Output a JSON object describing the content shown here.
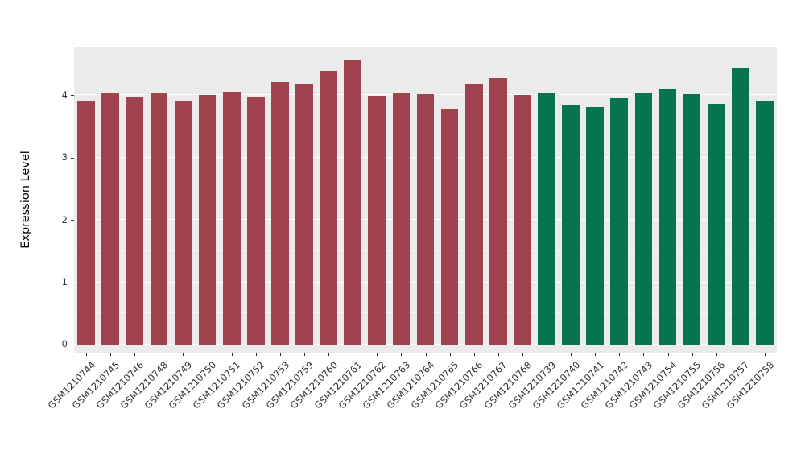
{
  "chart_data": {
    "type": "bar",
    "title": "",
    "xlabel": "",
    "ylabel": "Expression Level",
    "categories": [
      "GSM1210744",
      "GSM1210745",
      "GSM1210746",
      "GSM1210748",
      "GSM1210749",
      "GSM1210750",
      "GSM1210751",
      "GSM1210752",
      "GSM1210753",
      "GSM1210759",
      "GSM1210760",
      "GSM1210761",
      "GSM1210762",
      "GSM1210763",
      "GSM1210764",
      "GSM1210765",
      "GSM1210766",
      "GSM1210767",
      "GSM1210768",
      "GSM1210739",
      "GSM1210740",
      "GSM1210741",
      "GSM1210742",
      "GSM1210743",
      "GSM1210754",
      "GSM1210755",
      "GSM1210756",
      "GSM1210757",
      "GSM1210758"
    ],
    "values": [
      3.9,
      4.04,
      3.97,
      4.04,
      3.91,
      4.0,
      4.06,
      3.97,
      4.21,
      4.18,
      4.39,
      4.57,
      3.99,
      4.04,
      4.02,
      3.79,
      4.18,
      4.28,
      4.01,
      4.04,
      3.85,
      3.81,
      3.95,
      4.05,
      4.1,
      4.02,
      3.86,
      4.44,
      3.91
    ],
    "bar_groups": [
      {
        "color": "#A0424E",
        "count": 19
      },
      {
        "color": "#06754D",
        "count": 10
      }
    ],
    "yticks": [
      0,
      1,
      2,
      3,
      4
    ],
    "yticks_minor": [
      0.5,
      1.5,
      2.5,
      3.5,
      4.5
    ],
    "ylim": [
      0,
      4.6
    ],
    "panel_range": [
      -0.13,
      4.78
    ],
    "grid": true,
    "legend": "none",
    "panel_bg": "#EBEBEB",
    "grid_color": "#FFFFFF",
    "bar_width_fraction": 0.72
  }
}
